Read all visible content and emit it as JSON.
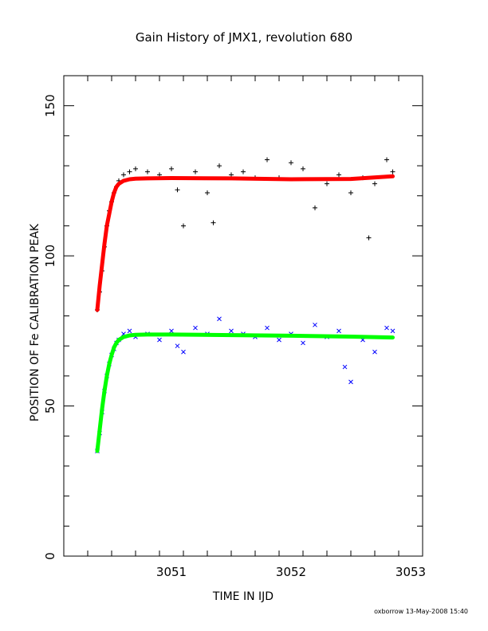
{
  "chart_data": {
    "type": "scatter",
    "title": "Gain History of JMX1, revolution 680",
    "xlabel": "TIME IN IJD",
    "ylabel": "POSITION OF Fe CALIBRATION PEAK",
    "xlim": [
      3050.1,
      3053.1
    ],
    "ylim": [
      0,
      160
    ],
    "xticks": [
      "3051",
      "3052",
      "3053"
    ],
    "yticks": [
      "0",
      "50",
      "100",
      "150"
    ],
    "grid": false,
    "legend": "none",
    "footer": "oxborrow 13-May-2008 15:40",
    "series": [
      {
        "marker": "plus",
        "color": "#000000",
        "x": [
          3050.38,
          3050.4,
          3050.42,
          3050.44,
          3050.46,
          3050.48,
          3050.5,
          3050.52,
          3050.54,
          3050.56,
          3050.6,
          3050.65,
          3050.7,
          3050.8,
          3050.9,
          3051.0,
          3051.05,
          3051.1,
          3051.2,
          3051.3,
          3051.35,
          3051.4,
          3051.5,
          3051.6,
          3051.7,
          3051.8,
          3051.9,
          3052.0,
          3052.1,
          3052.2,
          3052.3,
          3052.4,
          3052.5,
          3052.6,
          3052.65,
          3052.7,
          3052.8,
          3052.85
        ],
        "y": [
          82,
          88,
          95,
          103,
          110,
          115,
          118,
          121,
          123,
          125,
          127,
          128,
          129,
          128,
          127,
          129,
          122,
          110,
          128,
          121,
          111,
          130,
          127,
          128,
          126,
          132,
          126,
          131,
          129,
          116,
          124,
          127,
          121,
          126,
          106,
          124,
          132,
          128
        ]
      },
      {
        "marker": "x",
        "color": "#0000ff",
        "x": [
          3050.38,
          3050.4,
          3050.42,
          3050.44,
          3050.46,
          3050.48,
          3050.5,
          3050.52,
          3050.54,
          3050.56,
          3050.6,
          3050.65,
          3050.7,
          3050.8,
          3050.9,
          3051.0,
          3051.05,
          3051.1,
          3051.2,
          3051.3,
          3051.4,
          3051.5,
          3051.6,
          3051.7,
          3051.8,
          3051.9,
          3052.0,
          3052.1,
          3052.2,
          3052.3,
          3052.4,
          3052.45,
          3052.5,
          3052.6,
          3052.7,
          3052.8,
          3052.85
        ],
        "y": [
          35,
          41,
          48,
          55,
          60,
          64,
          67,
          69,
          71,
          72,
          74,
          75,
          73,
          74,
          72,
          75,
          70,
          68,
          76,
          74,
          79,
          75,
          74,
          73,
          76,
          72,
          74,
          71,
          77,
          73,
          75,
          63,
          58,
          72,
          68,
          76,
          75
        ]
      },
      {
        "type": "line",
        "color": "#ff0000",
        "x": [
          3050.38,
          3050.4,
          3050.42,
          3050.44,
          3050.46,
          3050.48,
          3050.5,
          3050.52,
          3050.54,
          3050.56,
          3050.6,
          3050.65,
          3050.7,
          3050.8,
          3051.0,
          3051.5,
          3052.0,
          3052.5,
          3052.85
        ],
        "y": [
          82,
          90,
          97,
          104,
          110,
          114,
          118,
          121,
          123,
          124,
          125,
          125.5,
          125.7,
          125.8,
          125.9,
          125.8,
          125.5,
          125.6,
          126.5
        ]
      },
      {
        "type": "line",
        "color": "#00ff00",
        "x": [
          3050.38,
          3050.4,
          3050.42,
          3050.44,
          3050.46,
          3050.48,
          3050.5,
          3050.52,
          3050.54,
          3050.56,
          3050.6,
          3050.65,
          3050.7,
          3050.8,
          3051.0,
          3051.5,
          3052.0,
          3052.5,
          3052.85
        ],
        "y": [
          35,
          42,
          49,
          55,
          60,
          64,
          67,
          69.5,
          71,
          72,
          73,
          73.5,
          73.7,
          73.8,
          73.8,
          73.6,
          73.4,
          73.1,
          72.8
        ]
      }
    ]
  }
}
